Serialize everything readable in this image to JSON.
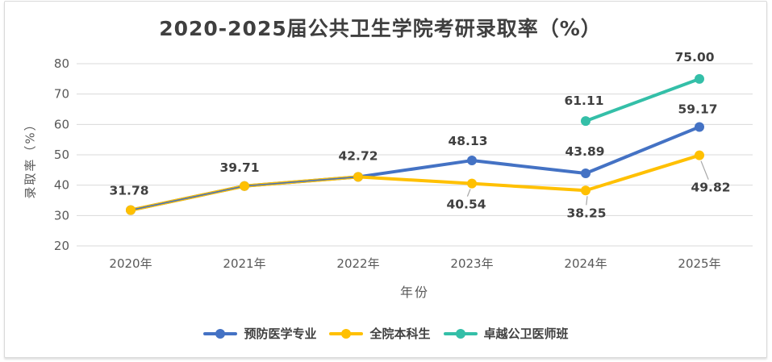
{
  "chart_data": {
    "type": "line",
    "title": "2020-2025届公共卫生学院考研录取率（%）",
    "xlabel": "年份",
    "ylabel": "录取率（%）",
    "categories": [
      "2020年",
      "2021年",
      "2022年",
      "2023年",
      "2024年",
      "2025年"
    ],
    "ylim": [
      20,
      80
    ],
    "yticks": [
      20,
      30,
      40,
      50,
      60,
      70,
      80
    ],
    "grid": true,
    "legend_position": "bottom",
    "series": [
      {
        "name": "预防医学专业",
        "color": "#4472C4",
        "values": [
          31.78,
          39.71,
          42.72,
          48.13,
          43.89,
          59.17
        ],
        "data_labels": [
          {
            "text": "31.78",
            "dx": -2,
            "dy": -24
          },
          {
            "text": "39.71",
            "dx": -6,
            "dy": -23
          },
          {
            "text": "42.72",
            "dx": 0,
            "dy": -26
          },
          {
            "text": "48.13",
            "dx": -5,
            "dy": -24
          },
          {
            "text": "43.89",
            "dx": -1,
            "dy": -27
          },
          {
            "text": "59.17",
            "dx": -2,
            "dy": -22
          }
        ]
      },
      {
        "name": "全院本科生",
        "color": "#FFC000",
        "values": [
          31.78,
          39.71,
          42.72,
          40.54,
          38.25,
          49.82
        ],
        "data_labels": [
          null,
          null,
          null,
          {
            "text": "40.54",
            "dx": -7,
            "dy": 26,
            "leader": true
          },
          {
            "text": "38.25",
            "dx": 1,
            "dy": 28,
            "leader": true
          },
          {
            "text": "49.82",
            "dx": 14,
            "dy": 40,
            "leader": true
          }
        ]
      },
      {
        "name": "卓越公卫医师班",
        "color": "#34BFA8",
        "values": [
          null,
          null,
          null,
          null,
          61.11,
          75.0
        ],
        "data_labels": [
          null,
          null,
          null,
          null,
          {
            "text": "61.11",
            "dx": -2,
            "dy": -25
          },
          {
            "text": "75.00",
            "dx": -6,
            "dy": -27
          }
        ]
      }
    ]
  },
  "colors": {
    "grid": "#D9D9D9",
    "tick_text": "#595959",
    "label_text": "#404040",
    "title_text": "#3F3F3F",
    "leader": "#A6A6A6",
    "card_border": "#D9D9D9"
  }
}
